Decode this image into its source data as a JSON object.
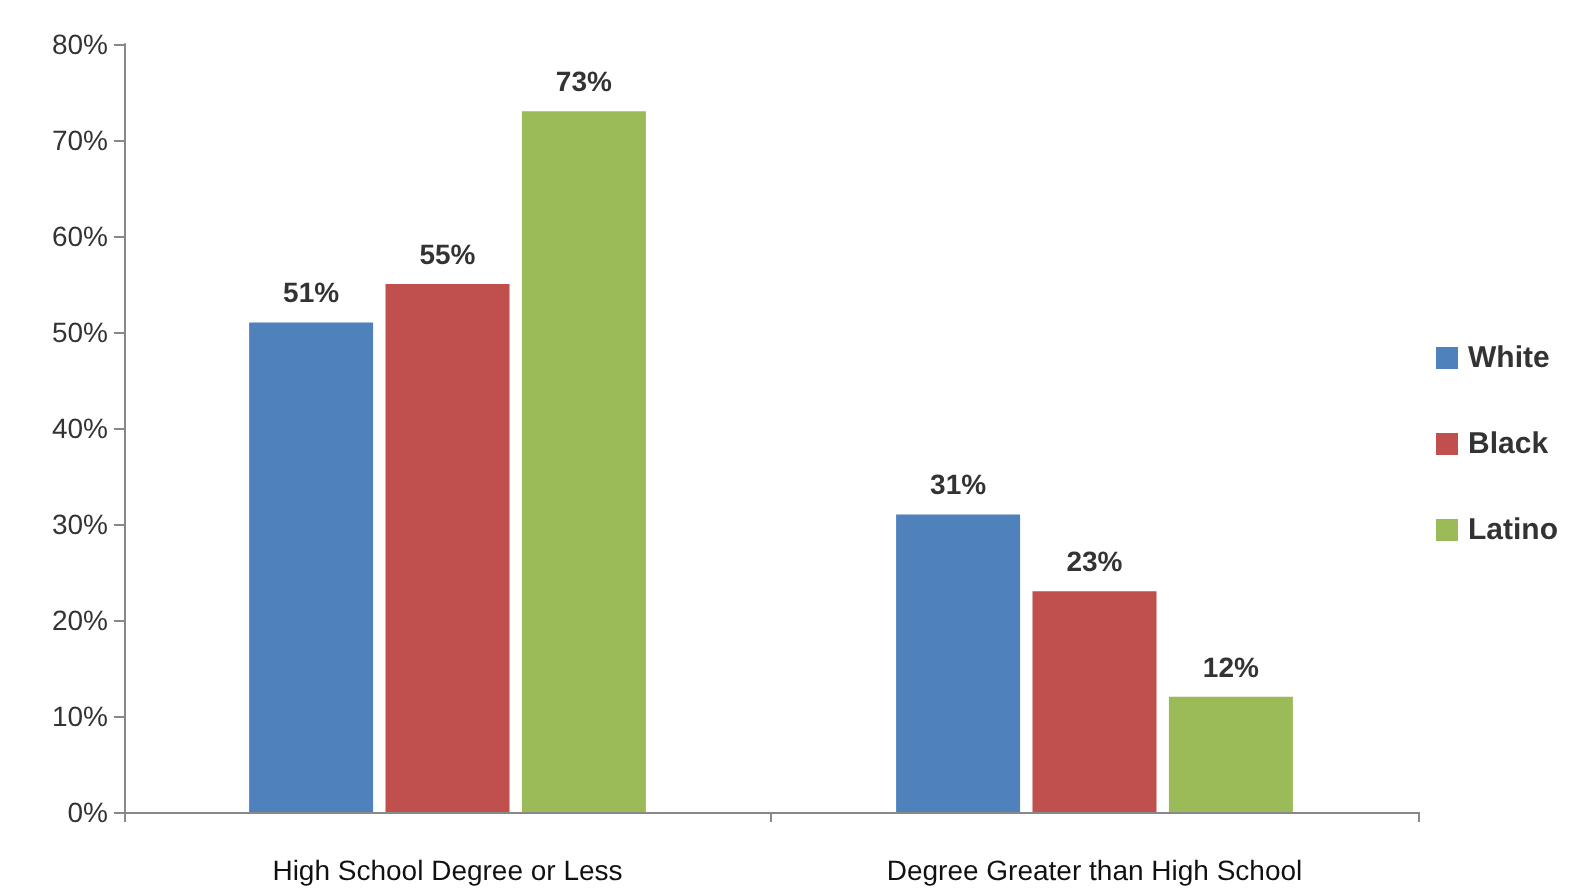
{
  "chart_data": {
    "type": "bar",
    "categories": [
      "High School Degree or Less",
      "Degree Greater than High School"
    ],
    "series": [
      {
        "name": "White",
        "color": "#4f81bd",
        "values": [
          51,
          31
        ],
        "value_labels": [
          "51%",
          "31%"
        ]
      },
      {
        "name": "Black",
        "color": "#c0504d",
        "values": [
          55,
          23
        ],
        "value_labels": [
          "55%",
          "23%"
        ]
      },
      {
        "name": "Latino",
        "color": "#9bbb59",
        "values": [
          73,
          12
        ],
        "value_labels": [
          "73%",
          "12%"
        ]
      }
    ],
    "ylim": [
      0,
      80
    ],
    "yticks": [
      {
        "value": 0,
        "label": "0%"
      },
      {
        "value": 10,
        "label": "10%"
      },
      {
        "value": 20,
        "label": "20%"
      },
      {
        "value": 30,
        "label": "30%"
      },
      {
        "value": 40,
        "label": "40%"
      },
      {
        "value": 50,
        "label": "50%"
      },
      {
        "value": 60,
        "label": "60%"
      },
      {
        "value": 70,
        "label": "70%"
      },
      {
        "value": 80,
        "label": "80%"
      }
    ],
    "grid": false,
    "legend": "right"
  }
}
